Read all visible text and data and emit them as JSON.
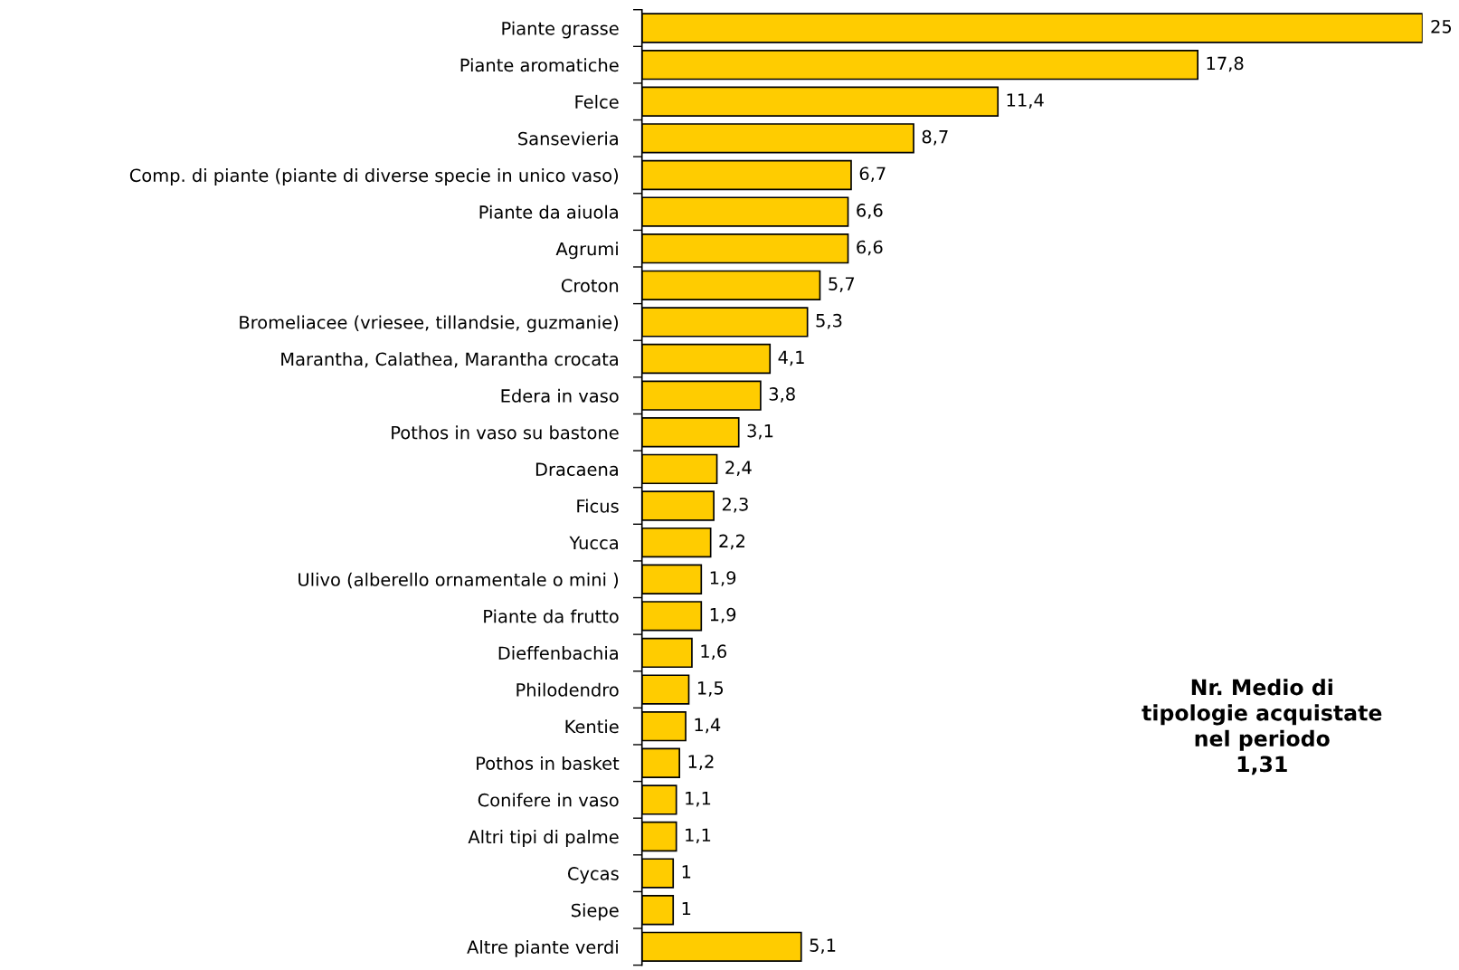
{
  "chart_data": {
    "type": "bar",
    "orientation": "horizontal",
    "categories": [
      "Piante grasse",
      "Piante aromatiche",
      "Felce",
      "Sansevieria",
      "Comp. di piante (piante di diverse specie in unico vaso)",
      "Piante da aiuola",
      "Agrumi",
      "Croton",
      "Bromeliacee (vriesee, tillandsie, guzmanie)",
      "Marantha, Calathea, Marantha crocata",
      "Edera in vaso",
      "Pothos in vaso su bastone",
      "Dracaena",
      "Ficus",
      "Yucca",
      "Ulivo (alberello ornamentale o mini )",
      "Piante da frutto",
      "Dieffenbachia",
      "Philodendro",
      "Kentie",
      "Pothos in basket",
      "Conifere in vaso",
      "Altri tipi di palme",
      "Cycas",
      "Siepe",
      "Altre piante verdi"
    ],
    "values": [
      25,
      17.8,
      11.4,
      8.7,
      6.7,
      6.6,
      6.6,
      5.7,
      5.3,
      4.1,
      3.8,
      3.1,
      2.4,
      2.3,
      2.2,
      1.9,
      1.9,
      1.6,
      1.5,
      1.4,
      1.2,
      1.1,
      1.1,
      1,
      1,
      5.1
    ],
    "value_labels": [
      "25",
      "17,8",
      "11,4",
      "8,7",
      "6,7",
      "6,6",
      "6,6",
      "5,7",
      "5,3",
      "4,1",
      "3,8",
      "3,1",
      "2,4",
      "2,3",
      "2,2",
      "1,9",
      "1,9",
      "1,6",
      "1,5",
      "1,4",
      "1,2",
      "1,1",
      "1,1",
      "1",
      "1",
      "5,1"
    ],
    "color": "#ffcc00",
    "annotations": [
      "Nr. Medio di\ntipologie acquistate\nnel periodo\n1,31"
    ],
    "grid": false,
    "legend": false
  }
}
